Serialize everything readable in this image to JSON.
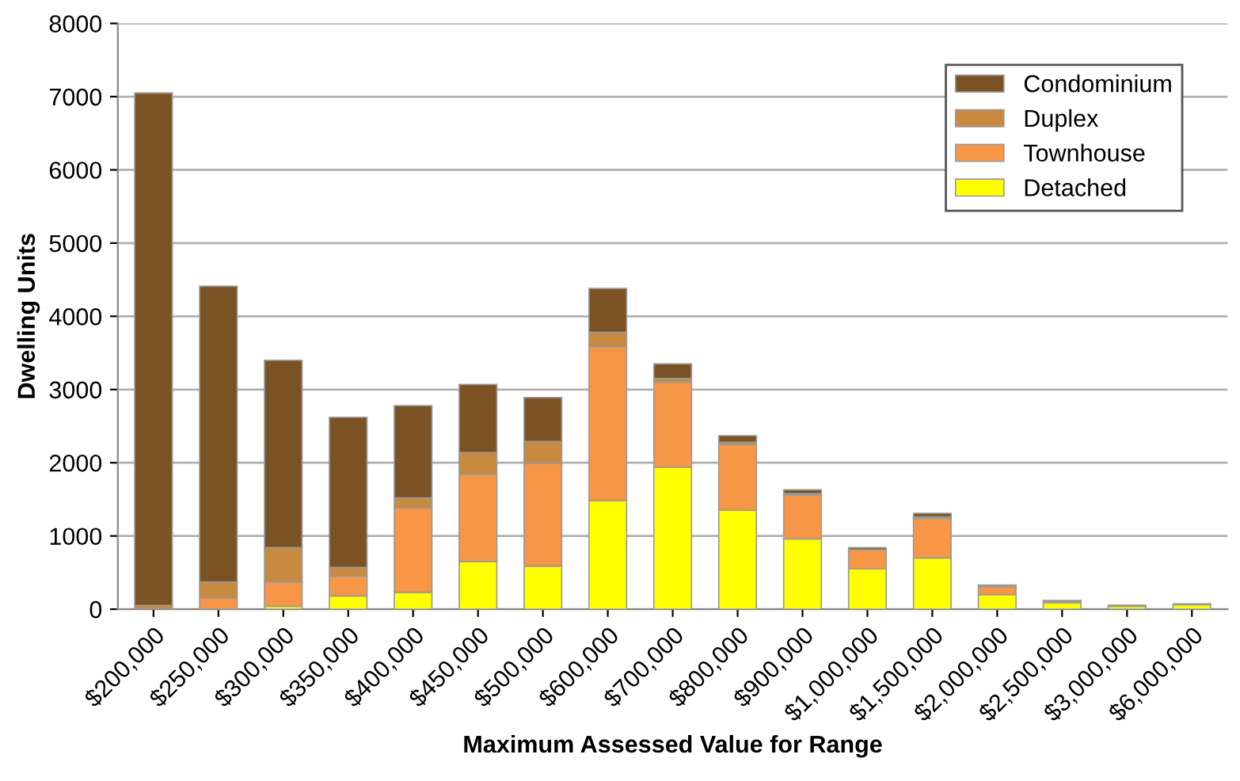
{
  "chart_data": {
    "type": "bar",
    "stacked": true,
    "xlabel": "Maximum Assessed Value for Range",
    "ylabel": "Dwelling Units",
    "categories": [
      "$200,000",
      "$250,000",
      "$300,000",
      "$350,000",
      "$400,000",
      "$450,000",
      "$500,000",
      "$600,000",
      "$700,000",
      "$800,000",
      "$900,000",
      "$1,000,000",
      "$1,500,000",
      "$2,000,000",
      "$2,500,000",
      "$3,000,000",
      "$6,000,000"
    ],
    "series": [
      {
        "name": "Detached",
        "color": "#ffff00",
        "values": [
          0,
          null,
          40,
          180,
          230,
          650,
          590,
          1480,
          1940,
          1350,
          960,
          550,
          700,
          200,
          90,
          40,
          60
        ]
      },
      {
        "name": "Townhouse",
        "color": "#f79646",
        "values": [
          0,
          150,
          330,
          270,
          1150,
          1190,
          1400,
          2100,
          1160,
          900,
          600,
          260,
          540,
          110,
          20,
          10,
          10
        ]
      },
      {
        "name": "Duplex",
        "color": "#c88a3e",
        "values": [
          50,
          220,
          470,
          120,
          140,
          300,
          300,
          200,
          50,
          30,
          20,
          null,
          20,
          0,
          0,
          0,
          0
        ]
      },
      {
        "name": "Condominium",
        "color": "#7b5223",
        "values": [
          7000,
          4040,
          2560,
          2050,
          1260,
          930,
          600,
          600,
          200,
          90,
          50,
          30,
          50,
          20,
          10,
          0,
          0
        ]
      }
    ],
    "ylim": [
      0,
      8000
    ],
    "yticks": [
      0,
      1000,
      2000,
      3000,
      4000,
      5000,
      6000,
      7000,
      8000
    ],
    "grid": "y",
    "legend": "top right"
  }
}
